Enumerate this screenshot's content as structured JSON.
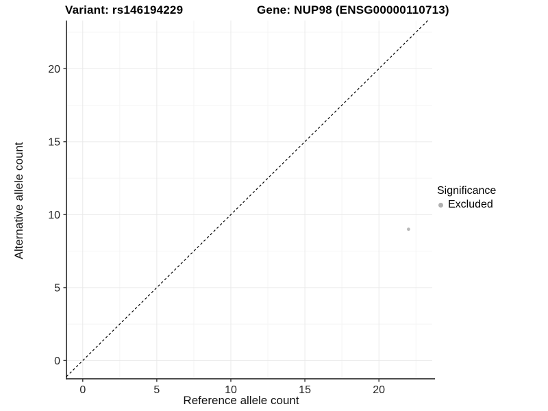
{
  "chart_data": {
    "type": "scatter",
    "titles": [
      "Variant: rs146194229",
      "Gene: NUP98 (ENSG00000110713)"
    ],
    "xlabel": "Reference allele count",
    "ylabel": "Alternative allele count",
    "x_ticks": [
      0,
      5,
      10,
      15,
      20
    ],
    "y_ticks": [
      0,
      5,
      10,
      15,
      20
    ],
    "xlim": [
      -1.1,
      23.6
    ],
    "ylim": [
      -1.25,
      23.3
    ],
    "grid": {
      "major": true,
      "minor": true
    },
    "reference_line": {
      "type": "identity",
      "equation": "y = x",
      "style": "dashed",
      "color": "#000000"
    },
    "series": [
      {
        "name": "Excluded",
        "color": "#b8b8b8",
        "points": [
          {
            "x": 22,
            "y": 9
          }
        ]
      }
    ],
    "legend": {
      "title": "Significance",
      "position": "right",
      "entries": [
        {
          "label": "Excluded",
          "color": "#b0b0b0"
        }
      ]
    }
  }
}
